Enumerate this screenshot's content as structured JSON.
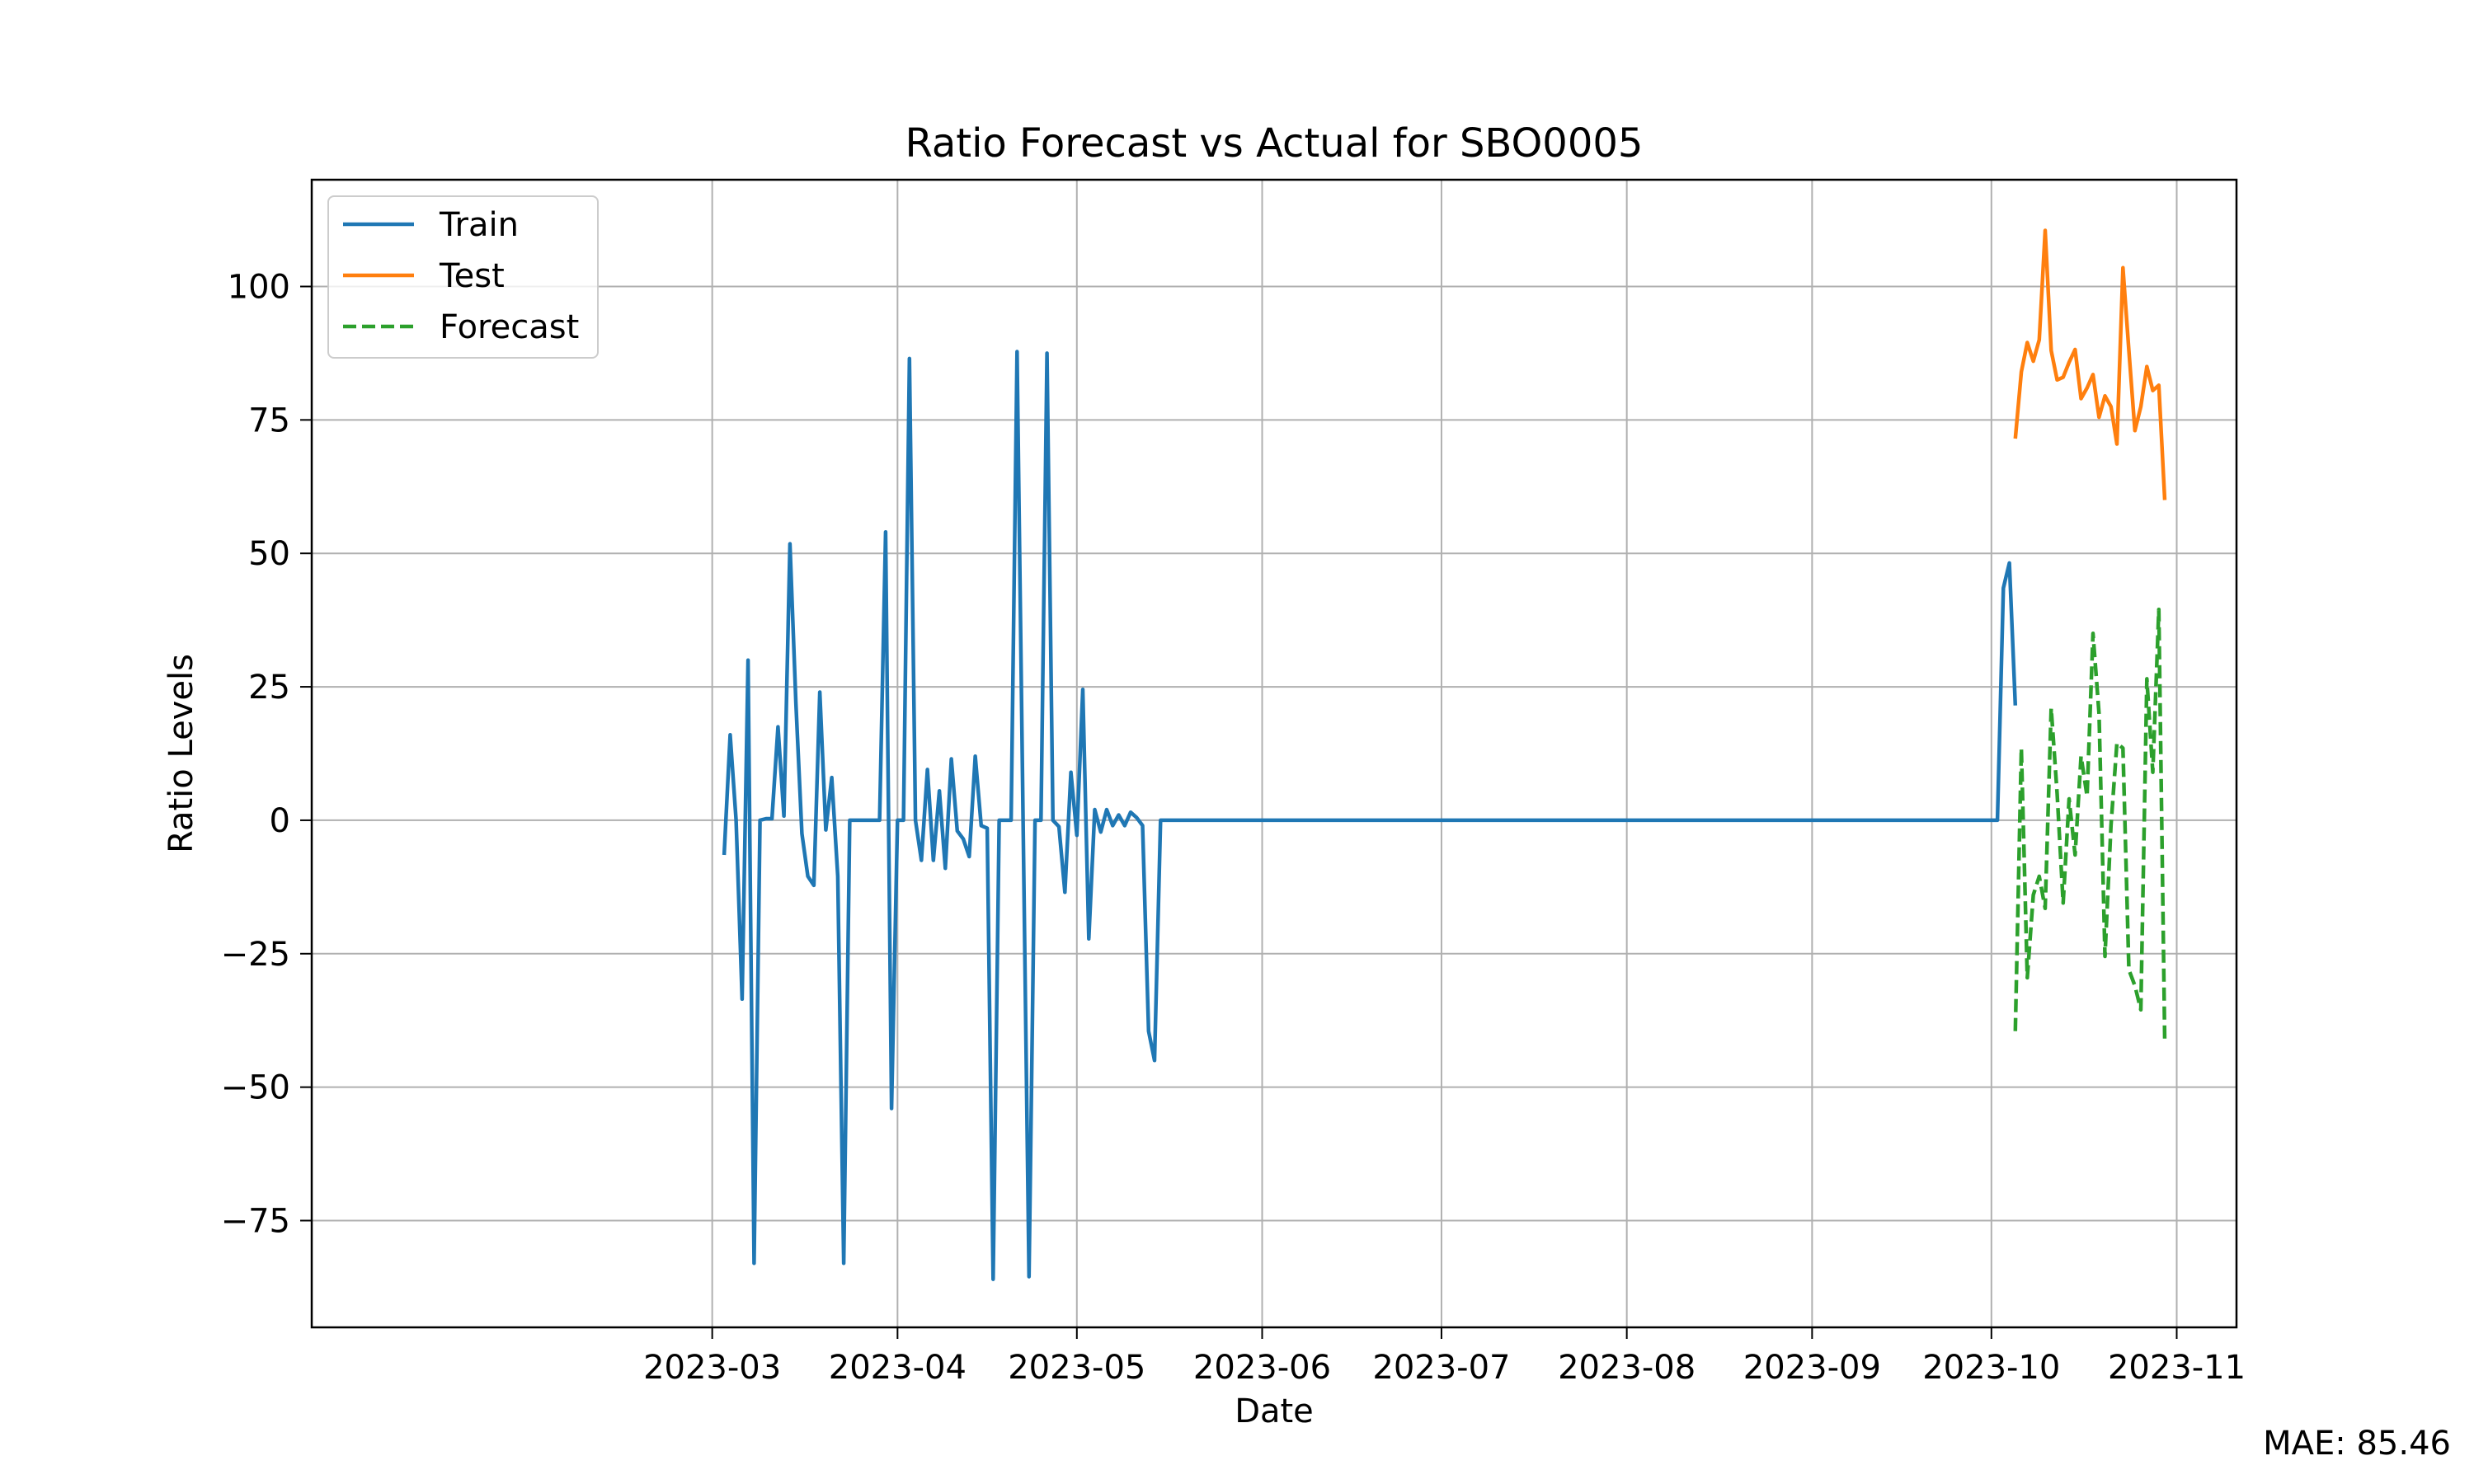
{
  "mae_text": "MAE: 85.46",
  "chart_data": {
    "type": "line",
    "title": "Ratio Forecast vs Actual for SBO0005",
    "xlabel": "Date",
    "ylabel": "Ratio Levels",
    "xlim": [
      "2022-12-24",
      "2023-11-11"
    ],
    "ylim": [
      -95,
      120
    ],
    "x_ticks": [
      "2023-03-01",
      "2023-04-01",
      "2023-05-01",
      "2023-06-01",
      "2023-07-01",
      "2023-08-01",
      "2023-09-01",
      "2023-10-01",
      "2023-11-01"
    ],
    "x_tick_labels": [
      "2023-03",
      "2023-04",
      "2023-05",
      "2023-06",
      "2023-07",
      "2023-08",
      "2023-09",
      "2023-10",
      "2023-11"
    ],
    "y_ticks": [
      -75,
      -50,
      -25,
      0,
      25,
      50,
      75,
      100
    ],
    "y_tick_labels": [
      "−75",
      "−50",
      "−25",
      "0",
      "25",
      "50",
      "75",
      "100"
    ],
    "grid": true,
    "legend_position": "top-left",
    "series": [
      {
        "name": "Train",
        "color": "#1f77b4",
        "style": "solid",
        "points": [
          [
            "2023-03-03",
            -6.5
          ],
          [
            "2023-03-04",
            16
          ],
          [
            "2023-03-05",
            0
          ],
          [
            "2023-03-06",
            -33.5
          ],
          [
            "2023-03-07",
            30
          ],
          [
            "2023-03-08",
            -83
          ],
          [
            "2023-03-09",
            0
          ],
          [
            "2023-03-10",
            0.3
          ],
          [
            "2023-03-11",
            0.3
          ],
          [
            "2023-03-12",
            17.5
          ],
          [
            "2023-03-13",
            0.8
          ],
          [
            "2023-03-14",
            51.8
          ],
          [
            "2023-03-15",
            22
          ],
          [
            "2023-03-16",
            -2.5
          ],
          [
            "2023-03-17",
            -10.5
          ],
          [
            "2023-03-18",
            -12.2
          ],
          [
            "2023-03-19",
            24
          ],
          [
            "2023-03-20",
            -1.8
          ],
          [
            "2023-03-21",
            8
          ],
          [
            "2023-03-22",
            -10.5
          ],
          [
            "2023-03-23",
            -83
          ],
          [
            "2023-03-24",
            0
          ],
          [
            "2023-03-25",
            0
          ],
          [
            "2023-03-26",
            0
          ],
          [
            "2023-03-27",
            0
          ],
          [
            "2023-03-28",
            0
          ],
          [
            "2023-03-29",
            0
          ],
          [
            "2023-03-30",
            54
          ],
          [
            "2023-03-31",
            -54
          ],
          [
            "2023-04-01",
            0
          ],
          [
            "2023-04-02",
            0
          ],
          [
            "2023-04-03",
            86.5
          ],
          [
            "2023-04-04",
            0
          ],
          [
            "2023-04-05",
            -7.5
          ],
          [
            "2023-04-06",
            9.5
          ],
          [
            "2023-04-07",
            -7.5
          ],
          [
            "2023-04-08",
            5.5
          ],
          [
            "2023-04-09",
            -9
          ],
          [
            "2023-04-10",
            11.5
          ],
          [
            "2023-04-11",
            -2
          ],
          [
            "2023-04-12",
            -3.5
          ],
          [
            "2023-04-13",
            -6.8
          ],
          [
            "2023-04-14",
            12
          ],
          [
            "2023-04-15",
            -1
          ],
          [
            "2023-04-16",
            -1.5
          ],
          [
            "2023-04-17",
            -86
          ],
          [
            "2023-04-18",
            0
          ],
          [
            "2023-04-19",
            0
          ],
          [
            "2023-04-20",
            0
          ],
          [
            "2023-04-21",
            87.8
          ],
          [
            "2023-04-22",
            0
          ],
          [
            "2023-04-23",
            -85.5
          ],
          [
            "2023-04-24",
            0
          ],
          [
            "2023-04-25",
            0
          ],
          [
            "2023-04-26",
            87.5
          ],
          [
            "2023-04-27",
            0
          ],
          [
            "2023-04-28",
            -1.2
          ],
          [
            "2023-04-29",
            -13.5
          ],
          [
            "2023-04-30",
            9
          ],
          [
            "2023-05-01",
            -2.8
          ],
          [
            "2023-05-02",
            24.5
          ],
          [
            "2023-05-03",
            -22.2
          ],
          [
            "2023-05-04",
            2
          ],
          [
            "2023-05-05",
            -2.2
          ],
          [
            "2023-05-06",
            2
          ],
          [
            "2023-05-07",
            -1
          ],
          [
            "2023-05-08",
            1
          ],
          [
            "2023-05-09",
            -1
          ],
          [
            "2023-05-10",
            1.5
          ],
          [
            "2023-05-11",
            0.5
          ],
          [
            "2023-05-12",
            -1
          ],
          [
            "2023-05-13",
            -39.5
          ],
          [
            "2023-05-14",
            -45
          ],
          [
            "2023-05-15",
            0
          ],
          [
            "2023-05-16",
            0
          ],
          [
            "2023-10-01",
            0
          ],
          [
            "2023-10-02",
            0
          ],
          [
            "2023-10-03",
            43.5
          ],
          [
            "2023-10-04",
            48.2
          ],
          [
            "2023-10-05",
            21.5
          ]
        ]
      },
      {
        "name": "Test",
        "color": "#ff7f0e",
        "style": "solid",
        "points": [
          [
            "2023-10-05",
            71.5
          ],
          [
            "2023-10-06",
            84
          ],
          [
            "2023-10-07",
            89.5
          ],
          [
            "2023-10-08",
            86
          ],
          [
            "2023-10-09",
            90
          ],
          [
            "2023-10-10",
            110.5
          ],
          [
            "2023-10-11",
            88
          ],
          [
            "2023-10-12",
            82.5
          ],
          [
            "2023-10-13",
            83
          ],
          [
            "2023-10-14",
            85.8
          ],
          [
            "2023-10-15",
            88.2
          ],
          [
            "2023-10-16",
            79
          ],
          [
            "2023-10-17",
            81
          ],
          [
            "2023-10-18",
            83.5
          ],
          [
            "2023-10-19",
            75.5
          ],
          [
            "2023-10-20",
            79.5
          ],
          [
            "2023-10-21",
            77.5
          ],
          [
            "2023-10-22",
            70.5
          ],
          [
            "2023-10-23",
            103.5
          ],
          [
            "2023-10-24",
            88
          ],
          [
            "2023-10-25",
            73
          ],
          [
            "2023-10-26",
            77.5
          ],
          [
            "2023-10-27",
            85
          ],
          [
            "2023-10-28",
            80.5
          ],
          [
            "2023-10-29",
            81.5
          ],
          [
            "2023-10-30",
            60
          ]
        ]
      },
      {
        "name": "Forecast",
        "color": "#2ca02c",
        "style": "dashed",
        "points": [
          [
            "2023-10-05",
            -39.5
          ],
          [
            "2023-10-06",
            13.5
          ],
          [
            "2023-10-07",
            -29.5
          ],
          [
            "2023-10-08",
            -14
          ],
          [
            "2023-10-09",
            -10.5
          ],
          [
            "2023-10-10",
            -16.5
          ],
          [
            "2023-10-11",
            21
          ],
          [
            "2023-10-12",
            5
          ],
          [
            "2023-10-13",
            -15.5
          ],
          [
            "2023-10-14",
            4
          ],
          [
            "2023-10-15",
            -6.5
          ],
          [
            "2023-10-16",
            12
          ],
          [
            "2023-10-17",
            4.5
          ],
          [
            "2023-10-18",
            35
          ],
          [
            "2023-10-19",
            20
          ],
          [
            "2023-10-20",
            -25.5
          ],
          [
            "2023-10-21",
            -1
          ],
          [
            "2023-10-22",
            14.5
          ],
          [
            "2023-10-23",
            13.5
          ],
          [
            "2023-10-24",
            -28
          ],
          [
            "2023-10-25",
            -31
          ],
          [
            "2023-10-26",
            -35.5
          ],
          [
            "2023-10-27",
            26.5
          ],
          [
            "2023-10-28",
            9
          ],
          [
            "2023-10-29",
            39.5
          ],
          [
            "2023-10-30",
            -41.5
          ]
        ]
      }
    ]
  }
}
